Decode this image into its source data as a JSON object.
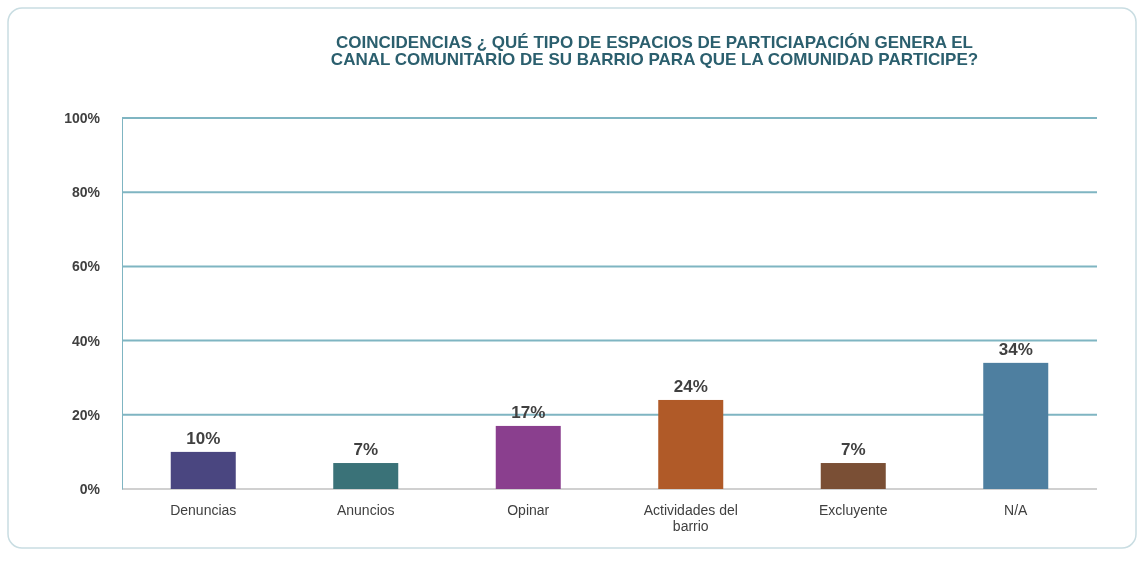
{
  "chart_data": {
    "type": "bar",
    "title": "COINCIDENCIAS  ¿ QUÉ TIPO DE ESPACIOS DE PARTICIAPACIÓN GENERA EL CANAL COMUNITARIO DE SU BARRIO PARA QUE LA COMUNIDAD PARTICIPE?",
    "categories": [
      "Denuncias",
      "Anuncios",
      "Opinar",
      "Actividades del barrio",
      "Excluyente",
      "N/A"
    ],
    "values": [
      10,
      7,
      17,
      24,
      7,
      34
    ],
    "colors": [
      "#4a4680",
      "#3a7278",
      "#8a3f8e",
      "#b05a28",
      "#7a4f35",
      "#4e7fa0"
    ],
    "value_labels": [
      "10%",
      "7%",
      "17%",
      "24%",
      "7%",
      "34%"
    ],
    "ylim": [
      0,
      100
    ],
    "yticks": [
      {
        "value": 0,
        "label": "0%"
      },
      {
        "value": 20,
        "label": "20%"
      },
      {
        "value": 40,
        "label": "40%"
      },
      {
        "value": 60,
        "label": "60%"
      },
      {
        "value": 80,
        "label": "80%"
      },
      {
        "value": 100,
        "label": "100%"
      }
    ],
    "grid": "y"
  }
}
